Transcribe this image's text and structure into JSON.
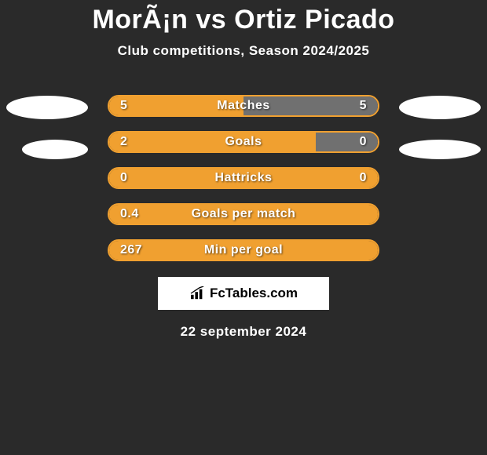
{
  "title": "MorÃ¡n vs Ortiz Picado",
  "subtitle": "Club competitions, Season 2024/2025",
  "date": "22 september 2024",
  "logo_text": "FcTables.com",
  "colors": {
    "background": "#2a2a2a",
    "orange": "#f0a030",
    "grey_bar": "#707070",
    "white": "#ffffff",
    "text": "#ffffff"
  },
  "ellipses": {
    "color": "#ffffff"
  },
  "stats": [
    {
      "label": "Matches",
      "left_value": "5",
      "right_value": "5",
      "left_pct": 50,
      "right_pct": 50,
      "left_color": "#f0a030",
      "right_color": "#707070",
      "border_color": "#f0a030"
    },
    {
      "label": "Goals",
      "left_value": "2",
      "right_value": "0",
      "left_pct": 77,
      "right_pct": 23,
      "left_color": "#f0a030",
      "right_color": "#707070",
      "border_color": "#f0a030"
    },
    {
      "label": "Hattricks",
      "left_value": "0",
      "right_value": "0",
      "left_pct": 100,
      "right_pct": 0,
      "left_color": "#f0a030",
      "right_color": "#707070",
      "border_color": "#f0a030"
    },
    {
      "label": "Goals per match",
      "left_value": "0.4",
      "right_value": "",
      "left_pct": 100,
      "right_pct": 0,
      "left_color": "#f0a030",
      "right_color": "#707070",
      "border_color": "#f0a030"
    },
    {
      "label": "Min per goal",
      "left_value": "267",
      "right_value": "",
      "left_pct": 100,
      "right_pct": 0,
      "left_color": "#f0a030",
      "right_color": "#707070",
      "border_color": "#f0a030"
    }
  ]
}
